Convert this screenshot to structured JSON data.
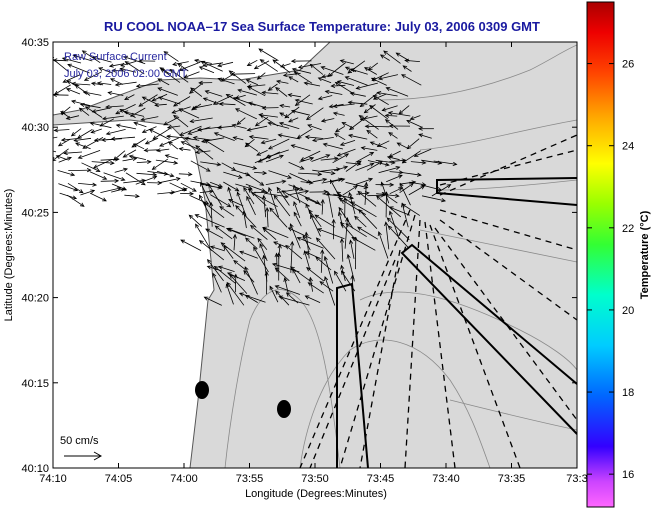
{
  "title": "RU COOL  NOAA–17  Sea Surface Temperature:  July 03, 2006 0309 GMT",
  "annotation_line1": "Raw Surface Current",
  "annotation_line2": "July 03, 2006 02:00 GMT",
  "scale_label": "50 cm/s",
  "colors": {
    "title": "#1a1aa0",
    "annotation": "#2a2aa0",
    "land": "#ffffff",
    "ocean": "#d9d9d9",
    "contour": "#808080",
    "vectors": "#000000"
  },
  "chart_data": {
    "type": "heatmap",
    "title": "RU COOL  NOAA–17  Sea Surface Temperature:  July 03, 2006 0309 GMT",
    "xlabel": "Longitude (Degrees:Minutes)",
    "ylabel": "Latitude (Degrees:Minutes)",
    "x_ticks": [
      "74:10",
      "74:05",
      "74:00",
      "73:55",
      "73:50",
      "73:45",
      "73:40",
      "73:35",
      "73:3"
    ],
    "y_ticks": [
      "40:35",
      "40:30",
      "40:25",
      "40:20",
      "40:15",
      "40:10"
    ],
    "xlim": [
      -74.1667,
      -73.5
    ],
    "ylim": [
      40.1667,
      40.5833
    ],
    "grid": false,
    "legend": "none",
    "overlay": "surface current vectors (raw), scale 50 cm/s",
    "colorbar": {
      "label": "Temperature (°C)",
      "ticks": [
        16,
        18,
        20,
        22,
        24,
        26
      ],
      "range": [
        15.2,
        27.5
      ],
      "colormap": "jet"
    },
    "markers": [
      {
        "lon": -73.9785,
        "lat": 40.2413,
        "shape": "filled-ellipse"
      },
      {
        "lon": -73.8777,
        "lat": 40.2252,
        "shape": "filled-ellipse"
      }
    ]
  }
}
